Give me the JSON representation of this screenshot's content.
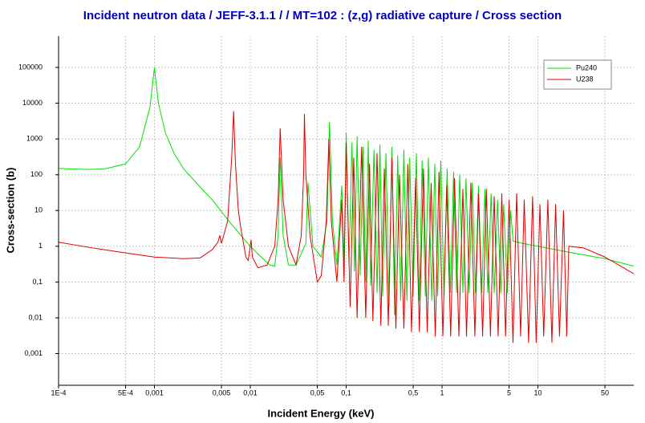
{
  "chart_data": {
    "type": "line",
    "title": "Incident neutron data / JEFF-3.1.1 / / MT=102 : (z,g) radiative capture / Cross section",
    "x_label": "Incident Energy (keV)",
    "y_label": "Cross-section (b)",
    "log_x": true,
    "log_y": true,
    "grid": true,
    "legend": "upper right",
    "xlim": [
      0.0001,
      100
    ],
    "ylim": [
      0.00013,
      750000
    ],
    "xticks": [
      {
        "value": 0.0001,
        "label": "1E-4"
      },
      {
        "value": 0.0005,
        "label": "5E-4"
      },
      {
        "value": 0.001,
        "label": "0,001"
      },
      {
        "value": 0.005,
        "label": "0,005"
      },
      {
        "value": 0.01,
        "label": "0,01"
      },
      {
        "value": 0.05,
        "label": "0,05"
      },
      {
        "value": 0.1,
        "label": "0,1"
      },
      {
        "value": 0.5,
        "label": "0,5"
      },
      1,
      5,
      10,
      50
    ],
    "yticks": [
      100000,
      10000,
      1000,
      100,
      10,
      1,
      {
        "value": 0.1,
        "label": "0,1"
      },
      {
        "value": 0.01,
        "label": "0,01"
      },
      {
        "value": 0.001,
        "label": "0,001"
      }
    ],
    "series": [
      {
        "name": "Pu240",
        "color": "#00e000",
        "x": [
          0.0001,
          0.0002,
          0.0003,
          0.0005,
          0.0007,
          0.0009,
          0.001,
          0.0011,
          0.0013,
          0.0016,
          0.002,
          0.003,
          0.004,
          0.006,
          0.008,
          0.01,
          0.013,
          0.016,
          0.018,
          0.0195,
          0.0205,
          0.022,
          0.025,
          0.03,
          0.038,
          0.04,
          0.045,
          0.055,
          0.063,
          0.067,
          0.072,
          0.08,
          0.09,
          0.095,
          0.1,
          0.107,
          0.115,
          0.122,
          0.13,
          0.14,
          0.15,
          0.16,
          0.17,
          0.18,
          0.195,
          0.21,
          0.225,
          0.24,
          0.26,
          0.28,
          0.3,
          0.32,
          0.345,
          0.37,
          0.4,
          0.43,
          0.46,
          0.5,
          0.54,
          0.58,
          0.62,
          0.67,
          0.72,
          0.78,
          0.84,
          0.9,
          0.97,
          1.05,
          1.13,
          1.22,
          1.32,
          1.42,
          1.53,
          1.65,
          1.78,
          1.92,
          2.07,
          2.23,
          2.4,
          2.6,
          2.8,
          3.0,
          3.25,
          3.5,
          3.8,
          4.1,
          4.4,
          4.8,
          5.2,
          5.5,
          6,
          10,
          20,
          50,
          100
        ],
        "values": [
          150,
          140,
          145,
          200,
          600,
          8000,
          100000,
          10000,
          1500,
          400,
          150,
          45,
          20,
          5,
          2,
          1,
          0.5,
          0.3,
          0.28,
          2,
          300,
          2,
          0.3,
          0.3,
          1.2,
          60,
          1,
          0.5,
          5,
          3000,
          5,
          0.3,
          50,
          0.3,
          1500,
          0.3,
          800,
          0.2,
          1200,
          0.15,
          600,
          0.1,
          900,
          0.08,
          500,
          0.05,
          700,
          0.04,
          400,
          0.02,
          600,
          0.012,
          350,
          0.03,
          500,
          0.03,
          300,
          0.04,
          400,
          0.03,
          250,
          0.04,
          300,
          0.03,
          200,
          0.04,
          250,
          0.04,
          150,
          0.05,
          120,
          0.05,
          100,
          0.05,
          80,
          0.05,
          60,
          0.05,
          50,
          0.05,
          40,
          0.05,
          30,
          0.05,
          20,
          0.05,
          15,
          0.05,
          10,
          1.4,
          1.3,
          1.0,
          0.7,
          0.45,
          0.28
        ]
      },
      {
        "name": "U238",
        "color": "#e00000",
        "x": [
          0.0001,
          0.0002,
          0.0003,
          0.0005,
          0.001,
          0.002,
          0.003,
          0.004,
          0.0046,
          0.0048,
          0.005,
          0.0058,
          0.0064,
          0.0067,
          0.007,
          0.0075,
          0.008,
          0.009,
          0.0095,
          0.0102,
          0.0105,
          0.012,
          0.015,
          0.018,
          0.0195,
          0.0205,
          0.022,
          0.025,
          0.03,
          0.034,
          0.036,
          0.0367,
          0.038,
          0.042,
          0.05,
          0.055,
          0.062,
          0.066,
          0.07,
          0.08,
          0.09,
          0.095,
          0.1,
          0.11,
          0.12,
          0.13,
          0.145,
          0.16,
          0.175,
          0.19,
          0.21,
          0.23,
          0.25,
          0.275,
          0.3,
          0.33,
          0.36,
          0.4,
          0.44,
          0.48,
          0.53,
          0.58,
          0.64,
          0.7,
          0.77,
          0.85,
          0.93,
          1.02,
          1.12,
          1.23,
          1.35,
          1.5,
          1.65,
          1.8,
          2.0,
          2.2,
          2.4,
          2.65,
          2.9,
          3.2,
          3.5,
          3.85,
          4.2,
          4.6,
          5.0,
          5.5,
          6.0,
          6.6,
          7.2,
          8.0,
          8.8,
          9.6,
          10.5,
          11.5,
          12.7,
          14,
          15.3,
          16.8,
          18.5,
          20,
          21,
          30,
          50,
          100
        ],
        "values": [
          1.3,
          0.95,
          0.8,
          0.65,
          0.5,
          0.45,
          0.47,
          0.8,
          1.3,
          2,
          1.2,
          5,
          300,
          6000,
          200,
          10,
          3,
          0.5,
          0.4,
          1.5,
          0.5,
          0.25,
          0.3,
          1,
          20,
          2000,
          20,
          1,
          0.3,
          2,
          100,
          5000,
          100,
          2,
          0.1,
          0.15,
          5,
          1000,
          5,
          0.1,
          20,
          0.1,
          800,
          0.02,
          300,
          0.01,
          600,
          0.01,
          200,
          0.008,
          400,
          0.006,
          150,
          0.006,
          300,
          0.005,
          100,
          0.005,
          200,
          0.004,
          80,
          0.004,
          150,
          0.004,
          60,
          0.003,
          120,
          0.003,
          50,
          0.003,
          80,
          0.003,
          40,
          0.003,
          60,
          0.003,
          30,
          0.003,
          40,
          0.003,
          25,
          0.003,
          30,
          0.003,
          20,
          0.002,
          30,
          0.003,
          20,
          0.002,
          25,
          0.002,
          15,
          0.003,
          20,
          0.002,
          15,
          0.003,
          10,
          0.003,
          1.0,
          0.9,
          0.5,
          0.17
        ]
      }
    ]
  }
}
